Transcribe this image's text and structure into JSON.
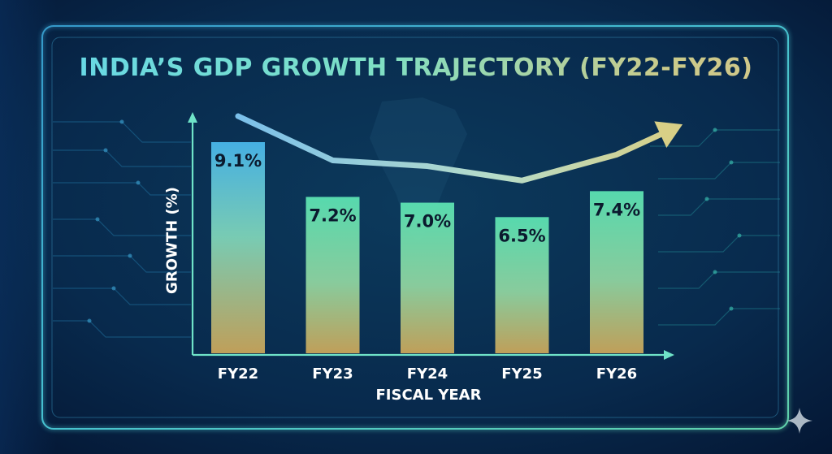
{
  "chart_data": {
    "type": "bar",
    "title": "INDIA’S GDP GROWTH TRAJECTORY (FY22-FY26)",
    "xlabel": "FISCAL YEAR",
    "ylabel": "GROWTH (%)",
    "categories": [
      "FY22",
      "FY23",
      "FY24",
      "FY25",
      "FY26"
    ],
    "values": [
      9.1,
      7.2,
      7.0,
      6.5,
      7.4
    ],
    "value_labels": [
      "9.1%",
      "7.2%",
      "7.0%",
      "6.5%",
      "7.4%"
    ],
    "trend_line": true,
    "grid": false
  },
  "colors": {
    "background": "#061a3a",
    "frame": "#58d8ea",
    "bar_top": "#5cd9b0",
    "bar_bottom": "#c9a55a",
    "first_bar_top": "#4bbde8",
    "trend": "#bfe2c4",
    "axis": "#6fe3c8"
  }
}
